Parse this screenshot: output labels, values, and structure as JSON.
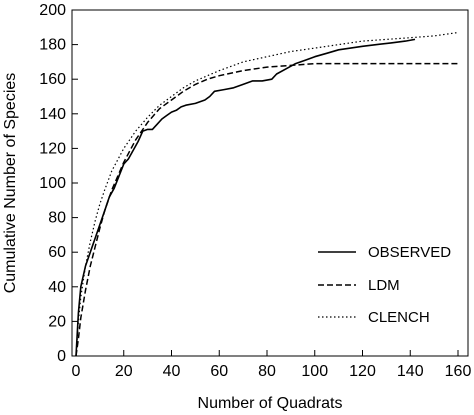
{
  "chart_data": {
    "type": "line",
    "xlabel": "Number of Quadrats",
    "ylabel": "Cumulative Number of Species",
    "xlim": [
      0,
      160
    ],
    "ylim": [
      0,
      200
    ],
    "x_ticks": [
      "0",
      "20",
      "40",
      "60",
      "80",
      "100",
      "120",
      "140",
      "160"
    ],
    "y_ticks": [
      "0",
      "20",
      "40",
      "60",
      "80",
      "100",
      "120",
      "140",
      "160",
      "180",
      "200"
    ],
    "grid": false,
    "legend_position": "lower-right",
    "series": [
      {
        "name": "OBSERVED",
        "style": "solid",
        "color": "#000000",
        "points": [
          [
            0,
            0
          ],
          [
            1,
            25
          ],
          [
            2,
            40
          ],
          [
            4,
            52
          ],
          [
            6,
            60
          ],
          [
            8,
            68
          ],
          [
            10,
            76
          ],
          [
            12,
            84
          ],
          [
            14,
            92
          ],
          [
            16,
            97
          ],
          [
            18,
            104
          ],
          [
            20,
            111
          ],
          [
            22,
            114
          ],
          [
            24,
            119
          ],
          [
            26,
            124
          ],
          [
            28,
            130
          ],
          [
            30,
            131
          ],
          [
            32,
            131
          ],
          [
            34,
            134
          ],
          [
            36,
            137
          ],
          [
            38,
            139
          ],
          [
            40,
            141
          ],
          [
            42,
            142
          ],
          [
            44,
            144
          ],
          [
            46,
            145
          ],
          [
            50,
            146
          ],
          [
            54,
            148
          ],
          [
            56,
            150
          ],
          [
            58,
            153
          ],
          [
            62,
            154
          ],
          [
            66,
            155
          ],
          [
            70,
            157
          ],
          [
            74,
            159
          ],
          [
            78,
            159
          ],
          [
            82,
            160
          ],
          [
            84,
            163
          ],
          [
            88,
            166
          ],
          [
            92,
            169
          ],
          [
            96,
            171
          ],
          [
            100,
            173
          ],
          [
            105,
            175
          ],
          [
            110,
            177
          ],
          [
            115,
            178
          ],
          [
            120,
            179
          ],
          [
            126,
            180
          ],
          [
            132,
            181
          ],
          [
            138,
            182
          ],
          [
            142,
            183
          ]
        ]
      },
      {
        "name": "LDM",
        "style": "dashed",
        "color": "#000000",
        "points": [
          [
            0,
            0
          ],
          [
            1,
            10
          ],
          [
            2,
            22
          ],
          [
            4,
            38
          ],
          [
            6,
            52
          ],
          [
            8,
            63
          ],
          [
            10,
            74
          ],
          [
            12,
            84
          ],
          [
            15,
            96
          ],
          [
            20,
            112
          ],
          [
            25,
            125
          ],
          [
            30,
            135
          ],
          [
            35,
            143
          ],
          [
            40,
            148
          ],
          [
            45,
            153
          ],
          [
            50,
            157
          ],
          [
            55,
            160
          ],
          [
            60,
            162
          ],
          [
            70,
            165
          ],
          [
            80,
            167
          ],
          [
            90,
            168
          ],
          [
            100,
            169
          ],
          [
            120,
            169
          ],
          [
            140,
            169
          ],
          [
            160,
            169
          ]
        ]
      },
      {
        "name": "CLENCH",
        "style": "dotted",
        "color": "#000000",
        "points": [
          [
            0,
            0
          ],
          [
            1,
            20
          ],
          [
            2,
            34
          ],
          [
            4,
            52
          ],
          [
            6,
            66
          ],
          [
            8,
            78
          ],
          [
            10,
            88
          ],
          [
            12,
            96
          ],
          [
            15,
            107
          ],
          [
            20,
            120
          ],
          [
            25,
            130
          ],
          [
            30,
            138
          ],
          [
            35,
            145
          ],
          [
            40,
            150
          ],
          [
            45,
            155
          ],
          [
            50,
            159
          ],
          [
            60,
            165
          ],
          [
            70,
            170
          ],
          [
            80,
            173
          ],
          [
            90,
            176
          ],
          [
            100,
            178
          ],
          [
            110,
            180
          ],
          [
            120,
            182
          ],
          [
            130,
            183
          ],
          [
            140,
            184
          ],
          [
            150,
            185
          ],
          [
            160,
            187
          ]
        ]
      }
    ]
  }
}
